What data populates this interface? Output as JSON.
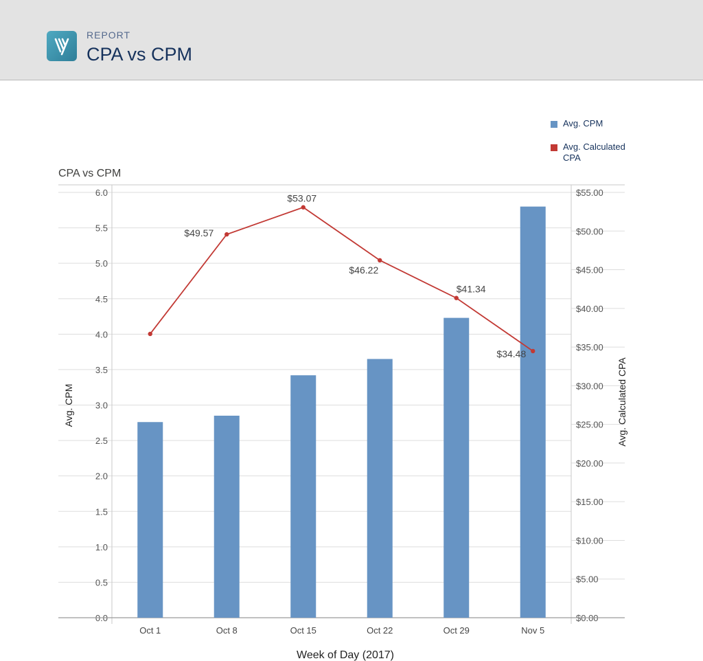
{
  "header": {
    "eyebrow": "REPORT",
    "title": "CPA vs CPM"
  },
  "legend": {
    "items": [
      {
        "label": "Avg. CPM",
        "color": "#6794c4"
      },
      {
        "label": "Avg. Calculated CPA",
        "color": "#c23934"
      }
    ]
  },
  "chart_data": {
    "type": "bar",
    "title": "CPA vs CPM",
    "xlabel": "Week of Day (2017)",
    "ylabel": "Avg. CPM",
    "y2label": "Avg. Calculated CPA",
    "categories": [
      "Oct 1",
      "Oct 8",
      "Oct 15",
      "Oct 22",
      "Oct 29",
      "Nov 5"
    ],
    "ylim": [
      0,
      6
    ],
    "y2lim": [
      0,
      55
    ],
    "yticks": [
      "0.0",
      "0.5",
      "1.0",
      "1.5",
      "2.0",
      "2.5",
      "3.0",
      "3.5",
      "4.0",
      "4.5",
      "5.0",
      "5.5",
      "6.0"
    ],
    "y2ticks": [
      "$0.00",
      "$5.00",
      "$10.00",
      "$15.00",
      "$20.00",
      "$25.00",
      "$30.00",
      "$35.00",
      "$40.00",
      "$45.00",
      "$50.00",
      "$55.00"
    ],
    "grid": true,
    "legend_position": "top-right",
    "series": [
      {
        "name": "Avg. CPM",
        "type": "bar",
        "axis": "left",
        "color": "#6794c4",
        "values": [
          2.76,
          2.85,
          3.42,
          3.65,
          4.23,
          5.8
        ]
      },
      {
        "name": "Avg. Calculated CPA",
        "type": "line",
        "axis": "right",
        "color": "#c23934",
        "values": [
          36.7,
          49.57,
          53.07,
          46.22,
          41.34,
          34.48
        ],
        "labels": [
          "",
          "$49.57",
          "$53.07",
          "$46.22",
          "$41.34",
          "$34.48"
        ]
      }
    ]
  }
}
